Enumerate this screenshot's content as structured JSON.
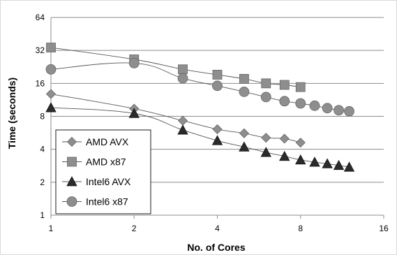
{
  "chart_data": {
    "type": "line",
    "xlabel": "No. of Cores",
    "ylabel": "Time (seconds)",
    "x_scale": "log2",
    "y_scale": "log2",
    "xlim": [
      1,
      16
    ],
    "ylim": [
      1,
      64
    ],
    "x_ticks": [
      "1",
      "2",
      "4",
      "8",
      "16"
    ],
    "y_ticks": [
      "1",
      "2",
      "4",
      "8",
      "16",
      "32",
      "64"
    ],
    "grid": "horizontal",
    "legend_position": "bottom-left",
    "series": [
      {
        "name": "AMD AVX",
        "marker": "diamond",
        "x": [
          1,
          2,
          3,
          4,
          5,
          6,
          7,
          8
        ],
        "y": [
          12.8,
          9.4,
          7.3,
          6.1,
          5.6,
          5.1,
          5.0,
          4.6
        ]
      },
      {
        "name": "AMD x87",
        "marker": "square",
        "x": [
          1,
          2,
          3,
          4,
          5,
          6,
          7,
          8
        ],
        "y": [
          34,
          26.5,
          21.5,
          19.2,
          17.6,
          16.0,
          15.5,
          14.8
        ]
      },
      {
        "name": "Intel6 AVX",
        "marker": "triangle",
        "x": [
          1,
          2,
          3,
          4,
          5,
          6,
          7,
          8,
          9,
          10,
          11,
          12
        ],
        "y": [
          9.6,
          8.5,
          6.0,
          4.8,
          4.2,
          3.75,
          3.45,
          3.2,
          3.05,
          2.95,
          2.85,
          2.75
        ]
      },
      {
        "name": "Intel6 x87",
        "marker": "circle",
        "x": [
          1,
          2,
          3,
          4,
          5,
          6,
          7,
          8,
          9,
          10,
          11,
          12
        ],
        "y": [
          21.5,
          24.5,
          17.8,
          15.2,
          13.4,
          12.0,
          11.0,
          10.5,
          10.0,
          9.5,
          9.1,
          8.9
        ]
      }
    ]
  }
}
